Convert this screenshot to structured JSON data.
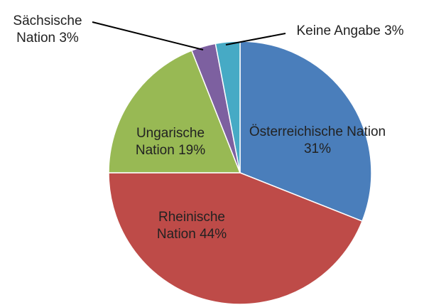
{
  "chart_data": {
    "type": "pie",
    "categories": [
      "Österreichische Nation",
      "Rheinische Nation",
      "Ungarische Nation",
      "Sächsische Nation",
      "Keine Angabe"
    ],
    "values": [
      31,
      44,
      19,
      3,
      3
    ],
    "value_labels": [
      "31%",
      "44%",
      "19%",
      "3%",
      "3%"
    ],
    "colors": [
      "#4a7ebb",
      "#be4b48",
      "#98b954",
      "#7d60a0",
      "#46aac5"
    ]
  }
}
